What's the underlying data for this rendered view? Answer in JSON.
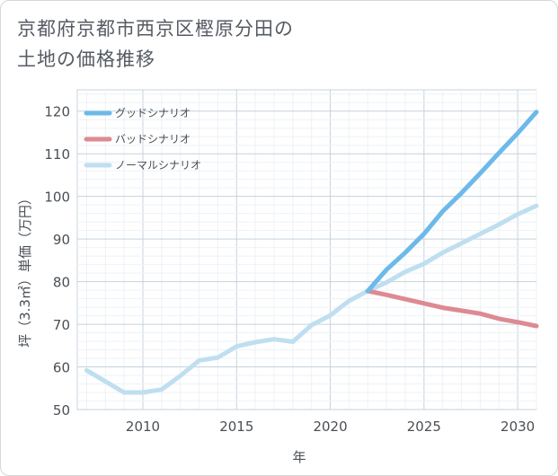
{
  "title_lines": [
    "京都府京都市西京区樫原分田の",
    "土地の価格推移"
  ],
  "chart_data": {
    "type": "line",
    "xlabel": "年",
    "ylabel": "坪（3.3㎡）単価（万円）",
    "xlim": [
      2006.5,
      2031
    ],
    "ylim": [
      50,
      125
    ],
    "xticks": [
      2010,
      2015,
      2020,
      2025,
      2030
    ],
    "yticks": [
      50,
      60,
      70,
      80,
      90,
      100,
      110,
      120
    ],
    "grid": true,
    "legend_position": "top-left",
    "series": [
      {
        "name": "グッドシナリオ",
        "color": "#6cb9ea",
        "x": [
          2022,
          2023,
          2024,
          2025,
          2026,
          2027,
          2028,
          2029,
          2030,
          2031
        ],
        "y": [
          77.8,
          82.8,
          86.8,
          91.2,
          96.5,
          100.8,
          105.4,
          110.2,
          114.8,
          119.8
        ]
      },
      {
        "name": "バッドシナリオ",
        "color": "#dd8a92",
        "x": [
          2022,
          2023,
          2024,
          2025,
          2026,
          2027,
          2028,
          2029,
          2030,
          2031
        ],
        "y": [
          77.8,
          76.9,
          75.9,
          74.9,
          73.9,
          73.2,
          72.5,
          71.3,
          70.5,
          69.6
        ]
      },
      {
        "name": "ノーマルシナリオ",
        "color": "#bfdff0",
        "x": [
          2007,
          2008,
          2009,
          2010,
          2011,
          2012,
          2013,
          2014,
          2015,
          2016,
          2017,
          2018,
          2019,
          2020,
          2021,
          2022,
          2023,
          2024,
          2025,
          2026,
          2027,
          2028,
          2029,
          2030,
          2031
        ],
        "y": [
          59.2,
          56.6,
          54.0,
          54.0,
          54.7,
          57.9,
          61.5,
          62.2,
          64.8,
          65.8,
          66.5,
          65.9,
          69.8,
          72.1,
          75.5,
          77.8,
          79.8,
          82.3,
          84.2,
          86.8,
          89.0,
          91.2,
          93.4,
          95.8,
          97.8
        ]
      }
    ]
  }
}
